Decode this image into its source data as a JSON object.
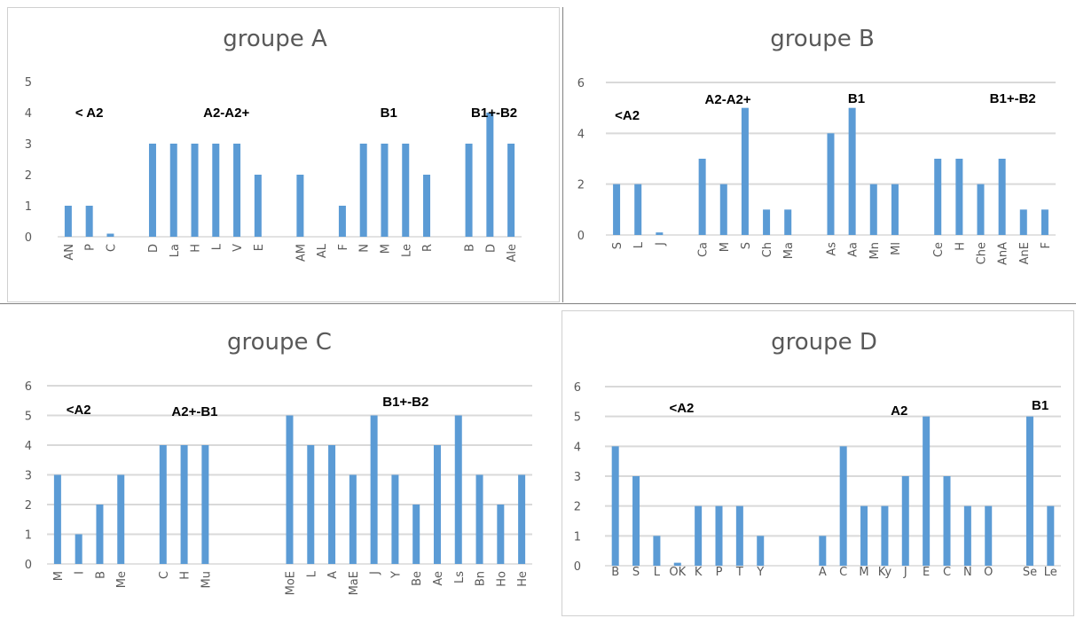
{
  "colors": {
    "bar": "#5b9bd5",
    "grid": "#d9d9d9",
    "axis_text": "#595959",
    "title": "#595959"
  },
  "chart_data": [
    {
      "type": "bar",
      "title": "groupe A",
      "ylim": [
        0,
        5
      ],
      "yticks": [
        0,
        1,
        2,
        3,
        4,
        5
      ],
      "grid": false,
      "label_rotation": "vertical",
      "categories": [
        "AN",
        "P",
        "C",
        "",
        "D",
        "La",
        "H",
        "L",
        "V",
        "E",
        "",
        "AM",
        "AL",
        "F",
        "N",
        "M",
        "Le",
        "R",
        "",
        "B",
        "D",
        "Ale"
      ],
      "values": [
        1,
        1,
        0.1,
        null,
        3,
        3,
        3,
        3,
        3,
        2,
        null,
        2,
        null,
        1,
        3,
        3,
        3,
        2,
        null,
        3,
        4,
        3
      ],
      "group_labels": [
        {
          "text": "< A2",
          "at": 1
        },
        {
          "text": "A2-A2+",
          "at": 7.5
        },
        {
          "text": "B1",
          "at": 15.2
        },
        {
          "text": "B1+-B2",
          "at": 20.2
        }
      ]
    },
    {
      "type": "bar",
      "title": "groupe B",
      "ylim": [
        0,
        6
      ],
      "yticks": [
        0,
        2,
        4,
        6
      ],
      "grid": true,
      "label_rotation": "vertical",
      "categories": [
        "S",
        "L",
        "J",
        "",
        "Ca",
        "M",
        "S",
        "Ch",
        "Ma",
        "",
        "As",
        "Aa",
        "Mn",
        "Ml",
        "",
        "Ce",
        "H",
        "Che",
        "AnA",
        "AnE",
        "F"
      ],
      "values": [
        2,
        2,
        0.1,
        null,
        3,
        2,
        5,
        1,
        1,
        null,
        4,
        5,
        2,
        2,
        null,
        3,
        3,
        2,
        3,
        1,
        1
      ],
      "group_labels": [
        {
          "text": "<A2",
          "at": 0.5
        },
        {
          "text": "A2-A2+",
          "at": 5.2
        },
        {
          "text": "B1",
          "at": 11.2
        },
        {
          "text": "B1+-B2",
          "at": 18.5
        }
      ]
    },
    {
      "type": "bar",
      "title": "groupe C",
      "ylim": [
        0,
        6
      ],
      "yticks": [
        0,
        1,
        2,
        3,
        4,
        5,
        6
      ],
      "grid": true,
      "label_rotation": "vertical",
      "categories": [
        "M",
        "I",
        "B",
        "Me",
        "",
        "C",
        "H",
        "Mu",
        "",
        "",
        "",
        "MoE",
        "L",
        "A",
        "MaE",
        "J",
        "Y",
        "Be",
        "Ae",
        "Ls",
        "Bn",
        "Ho",
        "He"
      ],
      "values": [
        3,
        1,
        2,
        3,
        null,
        4,
        4,
        4,
        null,
        null,
        null,
        5,
        4,
        4,
        3,
        5,
        3,
        2,
        4,
        5,
        3,
        2,
        3
      ],
      "group_labels": [
        {
          "text": "<A2",
          "at": 1
        },
        {
          "text": "A2+-B1",
          "at": 6.5
        },
        {
          "text": "B1+-B2",
          "at": 16.5
        }
      ]
    },
    {
      "type": "bar",
      "title": "groupe D",
      "ylim": [
        0,
        6
      ],
      "yticks": [
        0,
        1,
        2,
        3,
        4,
        5,
        6
      ],
      "grid": true,
      "label_rotation": "horizontal",
      "categories": [
        "B",
        "S",
        "L",
        "OK",
        "K",
        "P",
        "T",
        "Y",
        "",
        "",
        "A",
        "C",
        "M",
        "Ky",
        "J",
        "E",
        "C",
        "N",
        "O",
        "",
        "Se",
        "Le"
      ],
      "values": [
        4,
        3,
        1,
        0.1,
        2,
        2,
        2,
        1,
        null,
        null,
        1,
        4,
        2,
        2,
        3,
        5,
        3,
        2,
        2,
        null,
        5,
        2
      ],
      "group_labels": [
        {
          "text": "<A2",
          "at": 3.2
        },
        {
          "text": "A2",
          "at": 13.7
        },
        {
          "text": "B1",
          "at": 20.5
        }
      ]
    }
  ]
}
